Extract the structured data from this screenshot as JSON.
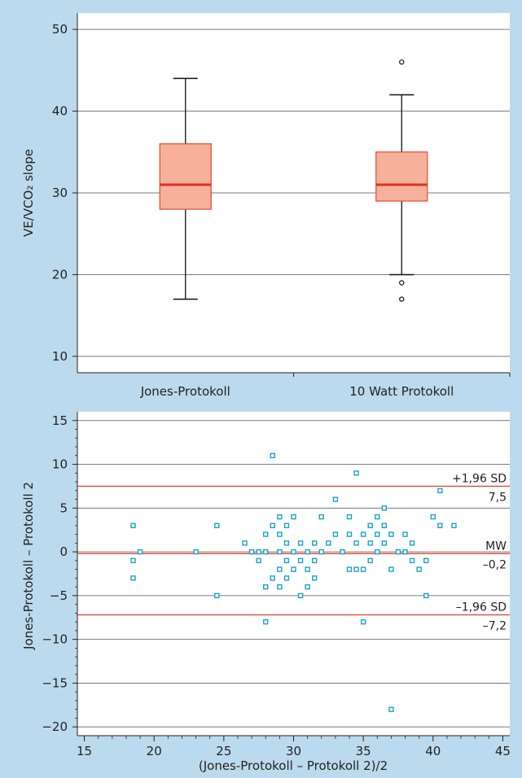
{
  "colors": {
    "frame": "#bcdaed",
    "plot_bg": "#ffffff",
    "grid": "#7a7a7a",
    "box_fill": "#f6b19d",
    "box_stroke": "#e04a2e",
    "median": "#e0321b",
    "whisker": "#111111",
    "point": "#1aa3c8",
    "ref_line": "#e0321b"
  },
  "chart_data": [
    {
      "type": "box",
      "ylabel": "VE/VCO₂ slope",
      "ylim": [
        8,
        52
      ],
      "yticks": [
        10,
        20,
        30,
        40,
        50
      ],
      "grid": "horizontal",
      "categories": [
        "Jones-Protokoll",
        "10 Watt Protokoll"
      ],
      "boxes": [
        {
          "category": "Jones-Protokoll",
          "whisker_low": 17,
          "q1": 28,
          "median": 31,
          "q3": 36,
          "whisker_high": 44,
          "outliers": []
        },
        {
          "category": "10 Watt Protokoll",
          "whisker_low": 20,
          "q1": 29,
          "median": 31,
          "q3": 35,
          "whisker_high": 42,
          "outliers": [
            46,
            19,
            17
          ]
        }
      ]
    },
    {
      "type": "scatter",
      "xlabel": "(Jones-Protokoll – Protokoll 2)/2",
      "ylabel": "Jones-Protokoll – Protokoll 2",
      "xlim": [
        14.5,
        45.5
      ],
      "ylim": [
        -21,
        16
      ],
      "xticks": [
        15,
        20,
        25,
        30,
        35,
        40,
        45
      ],
      "yticks": [
        -20,
        -15,
        -10,
        -5,
        0,
        5,
        10,
        15
      ],
      "grid": "horizontal",
      "points": [
        [
          18.5,
          3
        ],
        [
          18.5,
          -1
        ],
        [
          18.5,
          -3
        ],
        [
          19,
          0
        ],
        [
          23,
          0
        ],
        [
          24.5,
          3
        ],
        [
          24.5,
          -5
        ],
        [
          26.5,
          1
        ],
        [
          27,
          0
        ],
        [
          27.5,
          -1
        ],
        [
          27.5,
          0
        ],
        [
          28,
          2
        ],
        [
          28,
          0
        ],
        [
          28,
          -4
        ],
        [
          28,
          -8
        ],
        [
          28.5,
          3
        ],
        [
          28.5,
          -3
        ],
        [
          28.5,
          11
        ],
        [
          29,
          4
        ],
        [
          29,
          2
        ],
        [
          29,
          0
        ],
        [
          29,
          -2
        ],
        [
          29,
          -4
        ],
        [
          29.5,
          3
        ],
        [
          29.5,
          1
        ],
        [
          29.5,
          -1
        ],
        [
          29.5,
          -3
        ],
        [
          30,
          4
        ],
        [
          30,
          0
        ],
        [
          30,
          -2
        ],
        [
          30.5,
          1
        ],
        [
          30.5,
          -1
        ],
        [
          30.5,
          -5
        ],
        [
          31,
          0
        ],
        [
          31,
          -2
        ],
        [
          31,
          -4
        ],
        [
          31.5,
          1
        ],
        [
          31.5,
          -1
        ],
        [
          31.5,
          -3
        ],
        [
          32,
          4
        ],
        [
          32,
          0
        ],
        [
          32.5,
          1
        ],
        [
          33,
          6
        ],
        [
          33,
          2
        ],
        [
          33.5,
          0
        ],
        [
          34,
          4
        ],
        [
          34,
          2
        ],
        [
          34,
          -2
        ],
        [
          34.5,
          9
        ],
        [
          34.5,
          1
        ],
        [
          34.5,
          -2
        ],
        [
          35,
          2
        ],
        [
          35,
          -2
        ],
        [
          35,
          -8
        ],
        [
          35.5,
          3
        ],
        [
          35.5,
          1
        ],
        [
          35.5,
          -1
        ],
        [
          36,
          4
        ],
        [
          36,
          2
        ],
        [
          36,
          0
        ],
        [
          36.5,
          5
        ],
        [
          36.5,
          3
        ],
        [
          36.5,
          1
        ],
        [
          37,
          2
        ],
        [
          37,
          -2
        ],
        [
          37,
          -18
        ],
        [
          37.5,
          0
        ],
        [
          38,
          2
        ],
        [
          38,
          0
        ],
        [
          38.5,
          1
        ],
        [
          38.5,
          -1
        ],
        [
          39,
          -2
        ],
        [
          39.5,
          -1
        ],
        [
          39.5,
          -5
        ],
        [
          40,
          4
        ],
        [
          40.5,
          7
        ],
        [
          40.5,
          3
        ],
        [
          41.5,
          3
        ]
      ],
      "reference_lines": [
        {
          "y": 7.5,
          "label_top": "+1,96 SD",
          "label_bottom": "7,5"
        },
        {
          "y": -0.2,
          "label_top": "MW",
          "label_bottom": "–0,2"
        },
        {
          "y": -7.2,
          "label_top": "–1,96 SD",
          "label_bottom": "–7,2"
        }
      ]
    }
  ]
}
